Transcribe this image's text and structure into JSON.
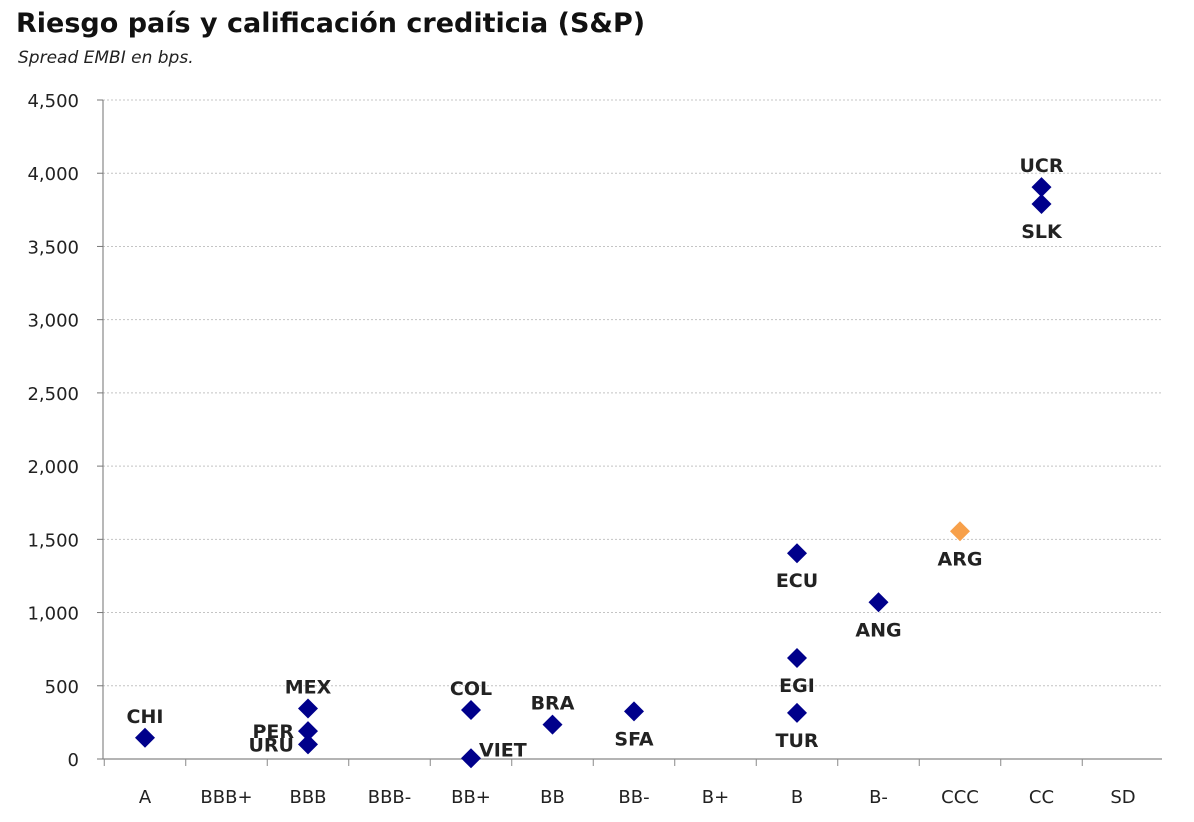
{
  "chart_data": {
    "type": "scatter",
    "title": "Riesgo país y calificación crediticia (S&P)",
    "subtitle": "Spread EMBI en bps.",
    "xlabel": "",
    "ylabel": "",
    "categories": [
      "A",
      "BBB+",
      "BBB",
      "BBB-",
      "BB+",
      "BB",
      "BB-",
      "B+",
      "B",
      "B-",
      "CCC",
      "CC",
      "SD"
    ],
    "ylim": [
      0,
      4500
    ],
    "yticks": [
      0,
      500,
      1000,
      1500,
      2000,
      2500,
      3000,
      3500,
      4000,
      4500
    ],
    "ytick_labels": [
      "0",
      "500",
      "1,000",
      "1,500",
      "2,000",
      "2,500",
      "3,000",
      "3,500",
      "4,000",
      "4,500"
    ],
    "grid": true,
    "points": [
      {
        "label": "CHI",
        "rating": "A",
        "value": 145,
        "color": "#00008B",
        "label_pos": "above"
      },
      {
        "label": "MEX",
        "rating": "BBB",
        "value": 345,
        "color": "#00008B",
        "label_pos": "above"
      },
      {
        "label": "PER",
        "rating": "BBB",
        "value": 190,
        "color": "#00008B",
        "label_pos": "left"
      },
      {
        "label": "URU",
        "rating": "BBB",
        "value": 100,
        "color": "#00008B",
        "label_pos": "left"
      },
      {
        "label": "COL",
        "rating": "BB+",
        "value": 335,
        "color": "#00008B",
        "label_pos": "above"
      },
      {
        "label": "VIET",
        "rating": "BB+",
        "value": 5,
        "color": "#00008B",
        "label_pos": "right"
      },
      {
        "label": "BRA",
        "rating": "BB",
        "value": 235,
        "color": "#00008B",
        "label_pos": "above"
      },
      {
        "label": "SFA",
        "rating": "BB-",
        "value": 325,
        "color": "#00008B",
        "label_pos": "below"
      },
      {
        "label": "ECU",
        "rating": "B",
        "value": 1405,
        "color": "#00008B",
        "label_pos": "below"
      },
      {
        "label": "EGI",
        "rating": "B",
        "value": 690,
        "color": "#00008B",
        "label_pos": "below"
      },
      {
        "label": "TUR",
        "rating": "B",
        "value": 315,
        "color": "#00008B",
        "label_pos": "below"
      },
      {
        "label": "ANG",
        "rating": "B-",
        "value": 1070,
        "color": "#00008B",
        "label_pos": "below"
      },
      {
        "label": "ARG",
        "rating": "CCC",
        "value": 1555,
        "color": "#F7A04A",
        "label_pos": "below"
      },
      {
        "label": "UCR",
        "rating": "CC",
        "value": 3905,
        "color": "#00008B",
        "label_pos": "above"
      },
      {
        "label": "SLK",
        "rating": "CC",
        "value": 3790,
        "color": "#00008B",
        "label_pos": "below"
      }
    ]
  }
}
